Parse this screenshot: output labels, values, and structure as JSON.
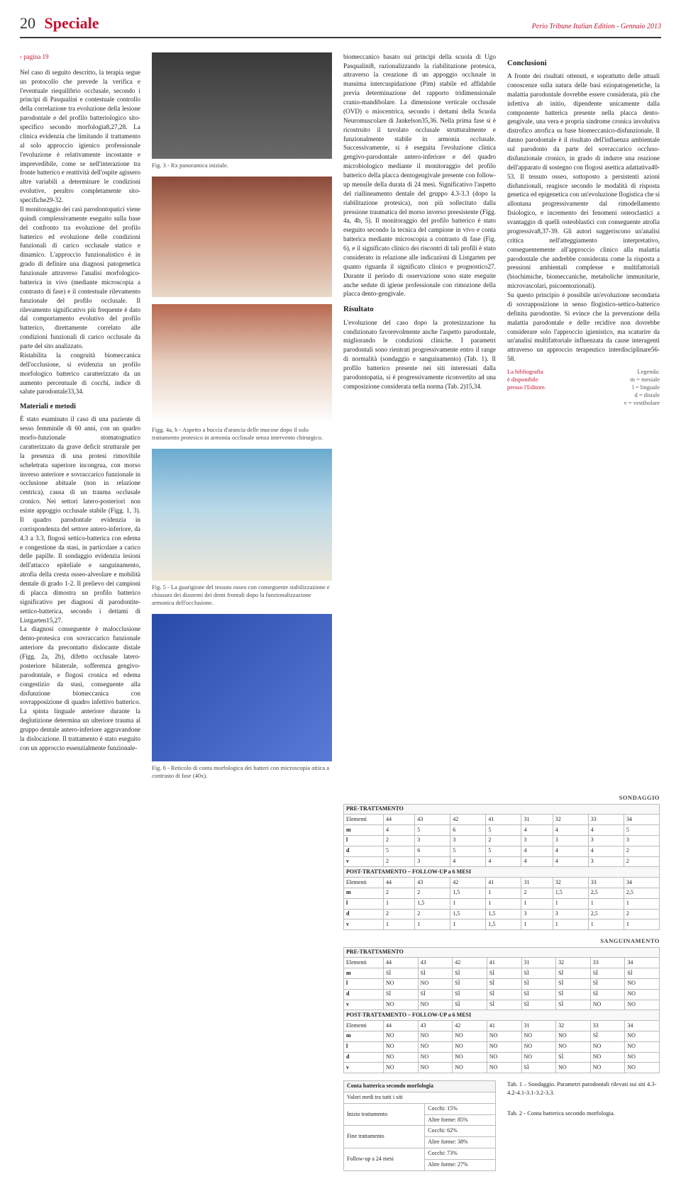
{
  "header": {
    "page_number": "20",
    "section": "Speciale",
    "publication": "Perio Tribune Italian Edition - Gennaio 2013"
  },
  "back_link": "pagina 19",
  "col1": {
    "p1": "Nel caso di seguito descritto, la terapia segue un protocollo che prevede la verifica e l'eventuale riequilibrio occlusale, secondo i principi di Pasqualini e contestuale controllo della correlazione tra evoluzione della lesione parodontale e del profilo batteriologico sito-specifico secondo morfologia8,27,28. La clinica evidenzia che limitando il trattamento al solo approccio igienico professionale l'evoluzione è relativamente incostante e imprevedibile, come se nell'interazione tra fronte batterico e reattività dell'ospite agissero altre variabili a determinare le condizioni evolutive, peraltro completamente sito-specifiche29-32.",
    "p2": "Il monitoraggio dei casi parodontopatici viene quindi complessivamente eseguito sulla base del confronto tra evoluzione del profilo batterico ed evoluzione delle condizioni funzionali di carico occlusale statico e dinamico. L'approccio funzionalistico è in grado di definire una diagnosi patogenetica funzionale attraverso l'analisi morfologico-batterica in vivo (mediante microscopia a contrasto di fase) e il contestuale rilevamento funzionale del profilo occlusale. Il rilevamento significativo più frequente è dato dal comportamento evolutivo del profilo batterico, direttamente correlato alle condizioni funzionali di carico occlusale da parte del sito analizzato.",
    "p3": "Ristabilita la congruità biomeccanica dell'occlusione, si evidenzia un profilo morfologico batterico caratterizzato da un aumento percentuale di cocchi, indice di salute parodontale33,34.",
    "materiali_head": "Materiali e metodi",
    "p4": "È stato esaminato il caso di una paziente di sesso femminile di 60 anni, con un quadro morfo-funzionale stomatognatico caratterizzato da grave deficit strutturale per la presenza di una protesi rimovibile scheletrata superiore incongrua, con morso inverso anteriore e sovraccarico funzionale in occlusione abituale (non in relazione centrica), causa di un trauma occlusale cronico. Nei settori latero-posteriori non esiste appoggio occlusale stabile (Figg. 1, 3). Il quadro parodontale evidenzia in corrispondenza del settore antero-inferiore, da 4.3 a 3.3, flogosi settico-batterica con edema e congestione da stasi, in particolare a carico delle papille. Il sondaggio evidenzia lesioni dell'attacco epiteliale e sanguinamento, atrofia della cresta osseo-alveolare e mobilità dentale di grado 1-2. Il prelievo dei campioni di placca dimostra un profilo batterico significativo per diagnosi di parodontite-settico-batterica, secondo i dettami di Listgarten15,27.",
    "p5": "La diagnosi conseguente è malocclusione dento-protesica con sovraccarico funzionale anteriore da precontatto dislocante distale (Figg. 2a, 2b), difetto occlusale latero-posteriore bilaterale, sofferenza gengivo-parodontale, e flogosi cronica ed edema congestizio da stasi, conseguente alla disfunzione biomeccanica con sovrapposizione di quadro infettivo batterico. La spinta linguale anteriore durante la deglutizione determina un ulteriore trauma al gruppo dentale antero-inferiore aggravandone la dislocazione. Il trattamento è stato eseguito con un approccio essenzialmente funzionale-"
  },
  "figs": {
    "f3_h": 150,
    "f3_cap": "Fig. 3 - Rx panoramica iniziale.",
    "f4a_h": 170,
    "f4b_h": 168,
    "f4_cap": "Figg. 4a, b - Aspetto a buccia d'arancia delle mucose dopo il solo trattamento protesico in armonia occlusale senza intervento chirurgico.",
    "f5_h": 186,
    "f5_cap": "Fig. 5 - La guarigione del tessuto osseo con conseguente stabilizzazione e chiusura dei diastemi dei denti frontali dopo la funzionalizzazione armonica dell'occlusione.",
    "f6_h": 208,
    "f6_cap": "Fig. 6 - Reticolo di conta morfologica dei batteri con microscopia ottica a contrasto di fase (40x)."
  },
  "col3": {
    "p1": "biomeccanico basato sui principi della scuola di Ugo Pasqualini8, razionalizzando la riabilitazione protesica, attraverso la creazione di un appoggio occlusale in massima intercuspidazione (Pim) stabile ed affidabile previa determinazione del rapporto tridimensionale cranio-mandibolare. La dimensione verticale occlusale (OVD) o miocentrica, secondo i dettami della Scuola Neuromuscolare di Jankelson35,36. Nella prima fase si è ricostruito il tavolato occlusale strutturalmente e funzionalmente stabile in armonia occlusale. Successivamente, si è eseguita l'evoluzione clinica gengivo-parodontale antero-inferiore e del quadro microbiologico mediante il monitoraggio del profilo batterico della placca dentogengivale presente con follow-up mensile della durata di 24 mesi. Significativo l'aspetto del riallineamento dentale del gruppo 4.3-3.3 (dopo la riabilitazione protesica), non più sollecitato dalla pressione traumatica del morso inverso preesistente (Figg. 4a, 4b, 5). Il monitoraggio del profilo batterico è stato eseguito secondo la tecnica del campione in vivo e conta batterica mediante microscopia a contrasto di fase (Fig. 6), e il significato clinico dei riscontri di tali profili è stato considerato in relazione alle indicazioni di Listgarten per quanto riguarda il significato clinico e prognostico27. Durante il periodo di osservazione sono state eseguite anche sedute di igiene professionale con rimozione della placca dento-gengivale.",
    "risultato_head": "Risultato",
    "p2": "L'evoluzione del caso dopo la protesizzazione ha condizionato favorevolmente anche l'aspetto parodontale, migliorando le condizioni cliniche. I parametri parodontali sono rientrati progressivamente entro il range di normalità (sondaggio e sanguinamento) (Tab. 1). Il profilo batterico presente nei siti interessati dalla parodontopatia, si è progressivamente riconvertito ad una composizione considerata nella norma (Tab. 2)15,34."
  },
  "col4": {
    "concl_head": "Conclusioni",
    "p1": "A fronte dei risultati ottenuti, e soprattutto delle attuali conoscenze sulla natura delle basi eziopatogenetiche, la malattia parodontale dovrebbe essere considerata, più che infettiva ab initio, dipendente unicamente dalla componente batterica presente nella placca dento-gengivale, una vera e propria sindrome cronica involutiva distrofico atrofica su base biomeccanico-disfunzionale. Il danno parodontale è il risultato dell'influenza ambientale sul parodonto da parte del sovraccarico occluso-disfunzionale cronico, in grado di indurre una reazione dell'apparato di sostegno con flogosi asettica adattativa40-53. Il tessuto osseo, sottoposto a persistenti azioni disfunzionali, reagisce secondo le modalità di risposta genetica ed epigenetica con un'evoluzione flogistica che si allontana progressivamente dal rimodellamento fisiologico, e incremento dei fenomeni osteoclastici a svantaggio di quelli osteoblastici con conseguente atrofia progressiva8,37-39. Gli autori suggeriscono un'analisi critica nell'atteggiamento interpretativo, conseguentemente all'approccio clinico alla malattia parodontale che andrebbe considerata come la risposta a pressioni ambientali complesse e multifattoriali (biochimiche, biomeccaniche, metaboliche immunitarie, microvascolari, psicoemozionali).",
    "p2": "Su questo principio è possibile un'evoluzione secondaria di sovrapposizione in senso flogistico-settico-batterico definita parodontite. Si evince che la prevenzione della malattia parodontale e delle recidive non dovrebbe considerare solo l'approccio igienistico, ma scaturire da un'analisi multifattoriale influenzata da cause interagenti attraverso un approccio terapeutico interdisciplinare56-58.",
    "bib": "La bibliografia\nè disponibile\npresso l'Editore.",
    "legend": "Legenda:\nm = mesiale\nl = linguale\nd = distale\nv = vestibolare"
  },
  "tables": {
    "sondaggio": {
      "title": "SONDAGGIO",
      "elements": [
        "44",
        "43",
        "42",
        "41",
        "31",
        "32",
        "33",
        "34"
      ],
      "pre_label": "PRE-TRATTAMENTO",
      "post_label": "POST-TRATTAMENTO – FOLLOW-UP a 6 MESI",
      "el_label": "Elementi",
      "rows_pre": {
        "m": [
          "4",
          "5",
          "6",
          "5",
          "4",
          "4",
          "4",
          "5"
        ],
        "l": [
          "2",
          "3",
          "3",
          "2",
          "3",
          "3",
          "3",
          "3"
        ],
        "d": [
          "5",
          "6",
          "5",
          "5",
          "4",
          "4",
          "4",
          "2"
        ],
        "v": [
          "2",
          "3",
          "4",
          "4",
          "4",
          "4",
          "3",
          "2"
        ]
      },
      "rows_post": {
        "m": [
          "2",
          "2",
          "1,5",
          "1",
          "2",
          "1,5",
          "2,5",
          "2,5"
        ],
        "l": [
          "1",
          "1,5",
          "1",
          "1",
          "1",
          "1",
          "1",
          "1"
        ],
        "d": [
          "2",
          "2",
          "1,5",
          "1,5",
          "3",
          "3",
          "2,5",
          "2"
        ],
        "v": [
          "1",
          "1",
          "1",
          "1,5",
          "1",
          "1",
          "1",
          "1"
        ]
      }
    },
    "sanguinamento": {
      "title": "SANGUINAMENTO",
      "elements": [
        "44",
        "43",
        "42",
        "41",
        "31",
        "32",
        "33",
        "34"
      ],
      "pre_label": "PRE-TRATTAMENTO",
      "post_label": "POST-TRATTAMENTO – FOLLOW-UP a 6 MESI",
      "el_label": "Elementi",
      "rows_pre": {
        "m": [
          "SÌ",
          "SÌ",
          "SÌ",
          "SÌ",
          "SÌ",
          "SÌ",
          "SÌ",
          "SÌ"
        ],
        "l": [
          "NO",
          "NO",
          "SÌ",
          "SÌ",
          "SÌ",
          "SÌ",
          "SÌ",
          "NO"
        ],
        "d": [
          "SÌ",
          "SÌ",
          "SÌ",
          "SÌ",
          "SÌ",
          "SÌ",
          "SÌ",
          "NO"
        ],
        "v": [
          "NO",
          "NO",
          "SÌ",
          "SÌ",
          "SÌ",
          "SÌ",
          "NO",
          "NO"
        ]
      },
      "rows_post": {
        "m": [
          "NO",
          "NO",
          "NO",
          "NO",
          "NO",
          "NO",
          "SÌ",
          "NO"
        ],
        "l": [
          "NO",
          "NO",
          "NO",
          "NO",
          "NO",
          "NO",
          "NO",
          "NO"
        ],
        "d": [
          "NO",
          "NO",
          "NO",
          "NO",
          "NO",
          "SÌ",
          "NO",
          "NO"
        ],
        "v": [
          "NO",
          "NO",
          "NO",
          "NO",
          "SÌ",
          "NO",
          "NO",
          "NO"
        ]
      }
    },
    "conta": {
      "title": "Conta batterica secondo morfologia",
      "sub": "Valori medi tra tutti i siti",
      "rows": [
        {
          "label": "Inizio trattamento",
          "a": "Cocchi: 15%",
          "b": "Altre forme: 85%"
        },
        {
          "label": "Fine trattamento",
          "a": "Cocchi: 62%",
          "b": "Altre forme: 38%"
        },
        {
          "label": "Follow-up a 24 mesi",
          "a": "Cocchi: 73%",
          "b": "Altre forme: 27%"
        }
      ]
    },
    "cap1": "Tab. 1 – Sondaggio. Parametri parodontali rilevati sui siti 4.3-4.2-4.1-3.1-3.2-3.3.",
    "cap2": "Tab. 2 - Conta batterica secondo morfologia."
  }
}
